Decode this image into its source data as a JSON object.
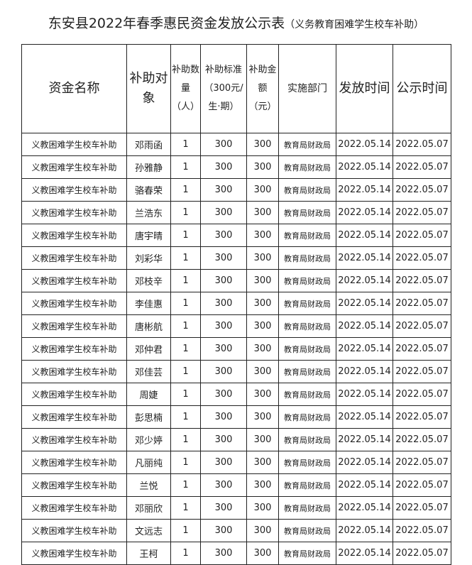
{
  "title": "东安县2022年春季惠民资金发放公示表",
  "subtitle": "（义务教育困难学生校车补助）",
  "headers": [
    "资金名称",
    "补助对象",
    "补助数量（人）",
    "补助标准（300元/生·期）",
    "补助金额（元）",
    "实施部门",
    "发放时间",
    "公示时间"
  ],
  "rows": [
    [
      "义教困难学生校车补助",
      "邓雨函",
      "1",
      "300",
      "300",
      "教育局财政局",
      "2022.05.14",
      "2022.05.07"
    ],
    [
      "义教困难学生校车补助",
      "孙雅静",
      "1",
      "300",
      "300",
      "教育局财政局",
      "2022.05.14",
      "2022.05.07"
    ],
    [
      "义教困难学生校车补助",
      "骆春荣",
      "1",
      "300",
      "300",
      "教育局财政局",
      "2022.05.14",
      "2022.05.07"
    ],
    [
      "义教困难学生校车补助",
      "兰浩东",
      "1",
      "300",
      "300",
      "教育局财政局",
      "2022.05.14",
      "2022.05.07"
    ],
    [
      "义教困难学生校车补助",
      "唐宇晴",
      "1",
      "300",
      "300",
      "教育局财政局",
      "2022.05.14",
      "2022.05.07"
    ],
    [
      "义教困难学生校车补助",
      "刘彩华",
      "1",
      "300",
      "300",
      "教育局财政局",
      "2022.05.14",
      "2022.05.07"
    ],
    [
      "义教困难学生校车补助",
      "邓枝辛",
      "1",
      "300",
      "300",
      "教育局财政局",
      "2022.05.14",
      "2022.05.07"
    ],
    [
      "义教困难学生校车补助",
      "李佳惠",
      "1",
      "300",
      "300",
      "教育局财政局",
      "2022.05.14",
      "2022.05.07"
    ],
    [
      "义教困难学生校车补助",
      "唐彬航",
      "1",
      "300",
      "300",
      "教育局财政局",
      "2022.05.14",
      "2022.05.07"
    ],
    [
      "义教困难学生校车补助",
      "邓仲君",
      "1",
      "300",
      "300",
      "教育局财政局",
      "2022.05.14",
      "2022.05.07"
    ],
    [
      "义教困难学生校车补助",
      "邓佳芸",
      "1",
      "300",
      "300",
      "教育局财政局",
      "2022.05.14",
      "2022.05.07"
    ],
    [
      "义教困难学生校车补助",
      "周婕",
      "1",
      "300",
      "300",
      "教育局财政局",
      "2022.05.14",
      "2022.05.07"
    ],
    [
      "义教困难学生校车补助",
      "彭思楠",
      "1",
      "300",
      "300",
      "教育局财政局",
      "2022.05.14",
      "2022.05.07"
    ],
    [
      "义教困难学生校车补助",
      "邓少婷",
      "1",
      "300",
      "300",
      "教育局财政局",
      "2022.05.14",
      "2022.05.07"
    ],
    [
      "义教困难学生校车补助",
      "凡丽纯",
      "1",
      "300",
      "300",
      "教育局财政局",
      "2022.05.14",
      "2022.05.07"
    ],
    [
      "义教困难学生校车补助",
      "兰悦",
      "1",
      "300",
      "300",
      "教育局财政局",
      "2022.05.14",
      "2022.05.07"
    ],
    [
      "义教困难学生校车补助",
      "邓丽欣",
      "1",
      "300",
      "300",
      "教育局财政局",
      "2022.05.14",
      "2022.05.07"
    ],
    [
      "义教困难学生校车补助",
      "文远志",
      "1",
      "300",
      "300",
      "教育局财政局",
      "2022.05.14",
      "2022.05.07"
    ],
    [
      "义教困难学生校车补助",
      "王柯",
      "1",
      "300",
      "300",
      "教育局财政局",
      "2022.05.14",
      "2022.05.07"
    ]
  ]
}
